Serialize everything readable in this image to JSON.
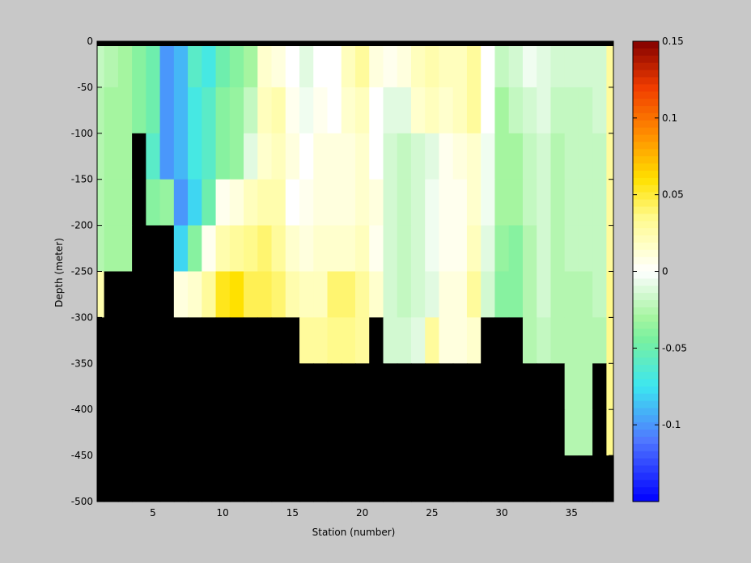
{
  "chart_data": {
    "type": "heatmap",
    "title": "",
    "xlabel": "Station (number)",
    "ylabel": "Depth (meter)",
    "xlim": [
      1,
      38
    ],
    "ylim": [
      -500,
      0
    ],
    "x_ticks": [
      5,
      10,
      15,
      20,
      25,
      30,
      35
    ],
    "x_tick_labels": [
      "5",
      "10",
      "15",
      "20",
      "25",
      "30",
      "35"
    ],
    "y_ticks": [
      0,
      -50,
      -100,
      -150,
      -200,
      -250,
      -300,
      -350,
      -400,
      -450,
      -500
    ],
    "y_tick_labels": [
      "0",
      "-50",
      "-100",
      "-150",
      "-200",
      "-250",
      "-300",
      "-350",
      "-400",
      "-450",
      "-500"
    ],
    "colorbar": {
      "range": [
        -0.15,
        0.15
      ],
      "ticks": [
        0.15,
        0.1,
        0.05,
        0,
        -0.05,
        -0.1
      ],
      "tick_labels": [
        "0.15",
        "0.1",
        "0.05",
        "0",
        "-0.05",
        "-0.1"
      ],
      "colormap": "blue-cyan-green-white-yellow-orange-red"
    },
    "background_color": "#c8c8c8",
    "mask_color": "#000000",
    "stations": [
      1,
      2,
      3,
      4,
      5,
      6,
      7,
      8,
      9,
      10,
      11,
      12,
      13,
      14,
      15,
      16,
      17,
      18,
      19,
      20,
      21,
      22,
      23,
      24,
      25,
      26,
      27,
      28,
      29,
      30,
      31,
      32,
      33,
      34,
      35,
      36,
      37,
      38
    ],
    "depths": [
      -25,
      -75,
      -125,
      -175,
      -225,
      -275,
      -325,
      -375,
      -425,
      -475
    ],
    "values": [
      [
        -0.02,
        -0.025,
        -0.03,
        -0.04,
        -0.05,
        -0.1,
        -0.09,
        -0.06,
        -0.07,
        -0.05,
        -0.04,
        -0.03,
        0.015,
        0.01,
        0.0,
        -0.01,
        0.0,
        0.0,
        0.02,
        0.03,
        0.01,
        0.005,
        0.01,
        0.02,
        0.025,
        0.02,
        0.02,
        0.03,
        0.0,
        -0.02,
        -0.015,
        -0.005,
        -0.01,
        -0.015,
        -0.015,
        -0.015,
        -0.015,
        0.03
      ],
      [
        -0.025,
        -0.03,
        -0.03,
        -0.04,
        -0.05,
        -0.1,
        -0.09,
        -0.07,
        -0.06,
        -0.04,
        -0.035,
        -0.02,
        0.02,
        0.025,
        0.005,
        -0.005,
        0.005,
        0.0,
        0.015,
        0.02,
        0.0,
        -0.01,
        -0.01,
        0.015,
        0.02,
        0.015,
        0.02,
        0.03,
        0.0,
        -0.03,
        -0.02,
        -0.015,
        -0.01,
        -0.02,
        -0.02,
        -0.02,
        -0.015,
        0.03
      ],
      [
        -0.025,
        -0.03,
        -0.03,
        null,
        -0.06,
        -0.1,
        -0.09,
        -0.07,
        -0.06,
        -0.04,
        -0.035,
        -0.01,
        0.015,
        0.02,
        0.01,
        0.0,
        0.01,
        0.01,
        0.01,
        0.015,
        0.0,
        -0.015,
        -0.02,
        -0.015,
        -0.01,
        0.005,
        0.01,
        0.015,
        -0.005,
        -0.03,
        -0.03,
        -0.02,
        -0.015,
        -0.025,
        -0.02,
        -0.02,
        -0.02,
        0.03
      ],
      [
        -0.025,
        -0.03,
        -0.03,
        null,
        -0.04,
        -0.035,
        -0.1,
        -0.08,
        -0.05,
        0.005,
        0.01,
        0.02,
        0.025,
        0.025,
        0.0,
        0.005,
        0.01,
        0.01,
        0.01,
        0.015,
        0.01,
        -0.015,
        -0.02,
        -0.015,
        -0.005,
        0.005,
        0.005,
        0.015,
        -0.005,
        -0.03,
        -0.03,
        -0.02,
        -0.015,
        -0.025,
        -0.02,
        -0.02,
        -0.02,
        0.03
      ],
      [
        -0.025,
        -0.03,
        -0.03,
        null,
        null,
        null,
        -0.08,
        -0.04,
        0.005,
        0.025,
        0.03,
        0.035,
        0.04,
        0.03,
        0.015,
        0.01,
        0.015,
        0.015,
        0.015,
        0.02,
        0.005,
        -0.015,
        -0.02,
        -0.015,
        -0.005,
        0.005,
        0.005,
        0.02,
        -0.01,
        -0.035,
        -0.04,
        -0.025,
        -0.015,
        -0.025,
        -0.02,
        -0.02,
        -0.02,
        0.03
      ],
      [
        0.025,
        null,
        null,
        null,
        null,
        null,
        0.01,
        0.015,
        0.03,
        0.055,
        0.06,
        0.045,
        0.045,
        0.04,
        0.025,
        0.02,
        0.02,
        0.04,
        0.04,
        0.03,
        0.015,
        -0.015,
        -0.02,
        -0.015,
        -0.01,
        0.01,
        0.01,
        0.03,
        -0.015,
        -0.04,
        -0.04,
        -0.025,
        -0.015,
        -0.025,
        -0.025,
        -0.025,
        -0.02,
        0.035
      ],
      [
        null,
        null,
        null,
        null,
        null,
        null,
        null,
        null,
        null,
        null,
        null,
        null,
        null,
        null,
        null,
        0.03,
        0.03,
        0.035,
        0.035,
        0.03,
        null,
        -0.015,
        -0.015,
        -0.01,
        0.03,
        0.01,
        0.01,
        0.015,
        null,
        null,
        null,
        -0.025,
        -0.02,
        -0.025,
        -0.025,
        -0.025,
        -0.025,
        0.035
      ],
      [
        null,
        null,
        null,
        null,
        null,
        null,
        null,
        null,
        null,
        null,
        null,
        null,
        null,
        null,
        null,
        null,
        null,
        null,
        null,
        null,
        null,
        null,
        null,
        null,
        null,
        null,
        null,
        null,
        null,
        null,
        null,
        null,
        null,
        null,
        -0.025,
        -0.025,
        null,
        0.035
      ],
      [
        null,
        null,
        null,
        null,
        null,
        null,
        null,
        null,
        null,
        null,
        null,
        null,
        null,
        null,
        null,
        null,
        null,
        null,
        null,
        null,
        null,
        null,
        null,
        null,
        null,
        null,
        null,
        null,
        null,
        null,
        null,
        null,
        null,
        null,
        -0.025,
        -0.025,
        null,
        0.035
      ],
      [
        null,
        null,
        null,
        null,
        null,
        null,
        null,
        null,
        null,
        null,
        null,
        null,
        null,
        null,
        null,
        null,
        null,
        null,
        null,
        null,
        null,
        null,
        null,
        null,
        null,
        null,
        null,
        null,
        null,
        null,
        null,
        null,
        null,
        null,
        null,
        null,
        null,
        null
      ]
    ]
  }
}
